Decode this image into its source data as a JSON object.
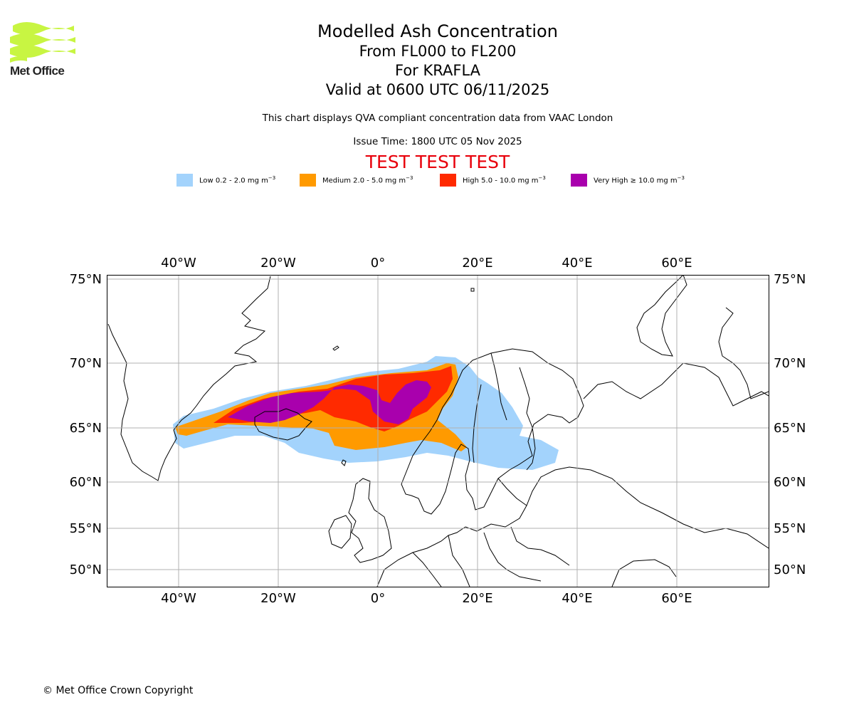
{
  "logo": {
    "name": "Met Office",
    "colors": {
      "waves": "#c8f542",
      "text": "#222222"
    }
  },
  "title": {
    "line1": "Modelled Ash Concentration",
    "line2": "From FL000 to FL200",
    "line3": "For KRAFLA",
    "line4": "Valid at 0600 UTC 06/11/2025"
  },
  "description": "This chart displays QVA compliant concentration data from VAAC London",
  "issue_time": "Issue Time: 1800 UTC 05 Nov 2025",
  "test_banner": "TEST TEST TEST",
  "legend": [
    {
      "label": "Low 0.2 - 2.0 mg m",
      "color": "#a3d3fc"
    },
    {
      "label": "Medium 2.0 - 5.0 mg m",
      "color": "#ff9a00"
    },
    {
      "label": "High 5.0 - 10.0 mg m",
      "color": "#ff2a00"
    },
    {
      "label": "Very High ≥ 10.0 mg m",
      "color": "#a900ad"
    }
  ],
  "unit_exponent": "−3",
  "map": {
    "lon_ticks": [
      "40°W",
      "20°W",
      "0°",
      "20°E",
      "40°E",
      "60°E"
    ],
    "lat_ticks": [
      "75°N",
      "70°N",
      "65°N",
      "60°N",
      "55°N",
      "50°N"
    ],
    "colors": {
      "coast": "#000000",
      "grid": "#b0b0b0"
    }
  },
  "copyright": "© Met Office Crown Copyright"
}
